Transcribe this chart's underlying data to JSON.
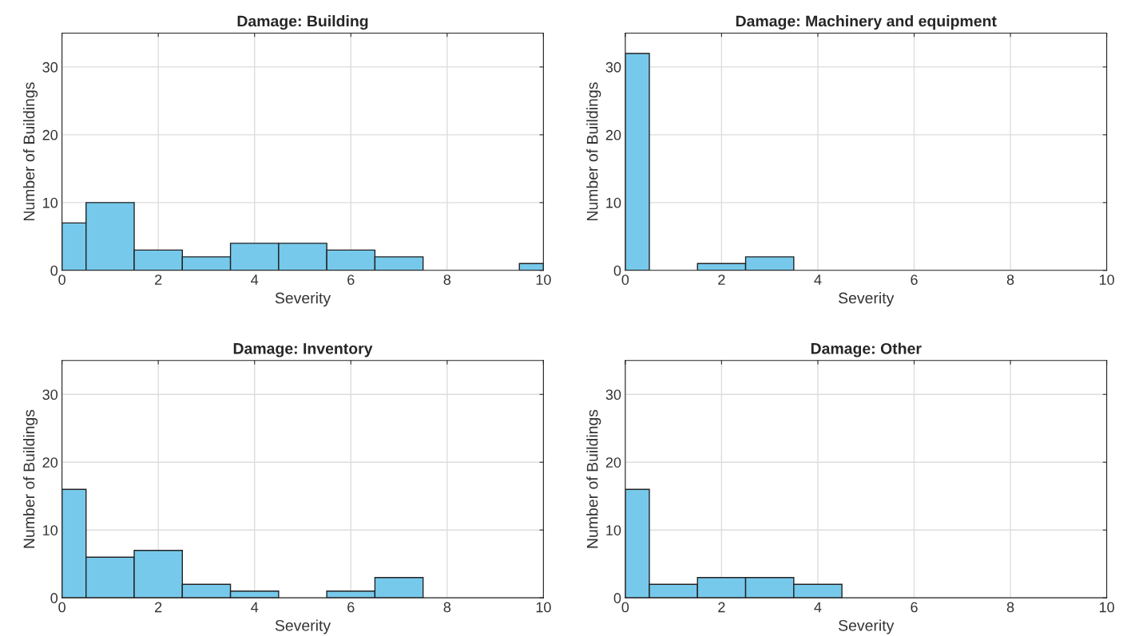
{
  "chart_data": [
    {
      "type": "histogram",
      "title": "Damage: Building",
      "xlabel": "Severity",
      "ylabel": "Number of Buildings",
      "color": "#77c9eb",
      "grid": true,
      "xlim": [
        0,
        10
      ],
      "ylim": [
        0,
        35
      ],
      "xticks": [
        0,
        2,
        4,
        6,
        8,
        10
      ],
      "yticks": [
        0,
        10,
        20,
        30
      ],
      "bins": [
        0,
        0.5,
        1.5,
        2.5,
        3.5,
        4.5,
        5.5,
        6.5,
        7.5,
        9.5,
        10
      ],
      "values": [
        7,
        10,
        3,
        2,
        4,
        4,
        3,
        2,
        0,
        1
      ]
    },
    {
      "type": "histogram",
      "title": "Damage: Machinery and equipment",
      "xlabel": "Severity",
      "ylabel": "Number of Buildings",
      "color": "#77c9eb",
      "grid": true,
      "xlim": [
        0,
        10
      ],
      "ylim": [
        0,
        35
      ],
      "xticks": [
        0,
        2,
        4,
        6,
        8,
        10
      ],
      "yticks": [
        0,
        10,
        20,
        30
      ],
      "bins": [
        0,
        0.5,
        1.5,
        2.5,
        3.5
      ],
      "values": [
        32,
        0,
        1,
        2
      ]
    },
    {
      "type": "histogram",
      "title": "Damage: Inventory",
      "xlabel": "Severity",
      "ylabel": "Number of Buildings",
      "color": "#77c9eb",
      "grid": true,
      "xlim": [
        0,
        10
      ],
      "ylim": [
        0,
        35
      ],
      "xticks": [
        0,
        2,
        4,
        6,
        8,
        10
      ],
      "yticks": [
        0,
        10,
        20,
        30
      ],
      "bins": [
        0,
        0.5,
        1.5,
        2.5,
        3.5,
        4.5,
        5.5,
        6.5,
        7.5
      ],
      "values": [
        16,
        6,
        7,
        2,
        1,
        0,
        1,
        3
      ]
    },
    {
      "type": "histogram",
      "title": "Damage: Other",
      "xlabel": "Severity",
      "ylabel": "Number of Buildings",
      "color": "#77c9eb",
      "grid": true,
      "xlim": [
        0,
        10
      ],
      "ylim": [
        0,
        35
      ],
      "xticks": [
        0,
        2,
        4,
        6,
        8,
        10
      ],
      "yticks": [
        0,
        10,
        20,
        30
      ],
      "bins": [
        0,
        0.5,
        1.5,
        2.5,
        3.5,
        4.5
      ],
      "values": [
        16,
        2,
        3,
        3,
        2
      ]
    }
  ]
}
